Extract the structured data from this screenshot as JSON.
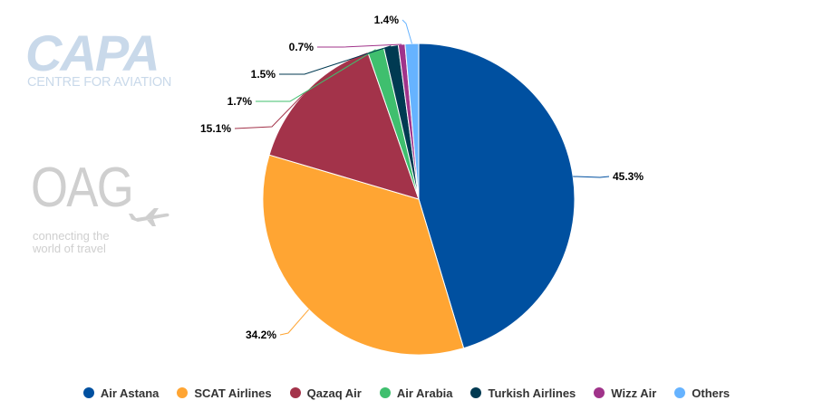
{
  "chart_data": {
    "type": "pie",
    "labels": [
      "Air Astana",
      "SCAT Airlines",
      "Qazaq Air",
      "Air Arabia",
      "Turkish Airlines",
      "Wizz Air",
      "Others"
    ],
    "values": [
      45.3,
      34.2,
      15.1,
      1.7,
      1.5,
      0.7,
      1.4
    ],
    "data_labels": [
      "45.3%",
      "34.2%",
      "15.1%",
      "1.7%",
      "1.5%",
      "0.7%",
      "1.4%"
    ],
    "colors": [
      "#0050a0",
      "#ffa533",
      "#a3334a",
      "#3fbf6e",
      "#003a52",
      "#a0338a",
      "#66b3ff"
    ],
    "legend_placement": "bottom"
  },
  "logos": {
    "capa_word": "CAPA",
    "capa_sub": "CENTRE FOR AVIATION",
    "oag_word": "OAG",
    "oag_tag_line1": "connecting the",
    "oag_tag_line2": "world of travel"
  }
}
